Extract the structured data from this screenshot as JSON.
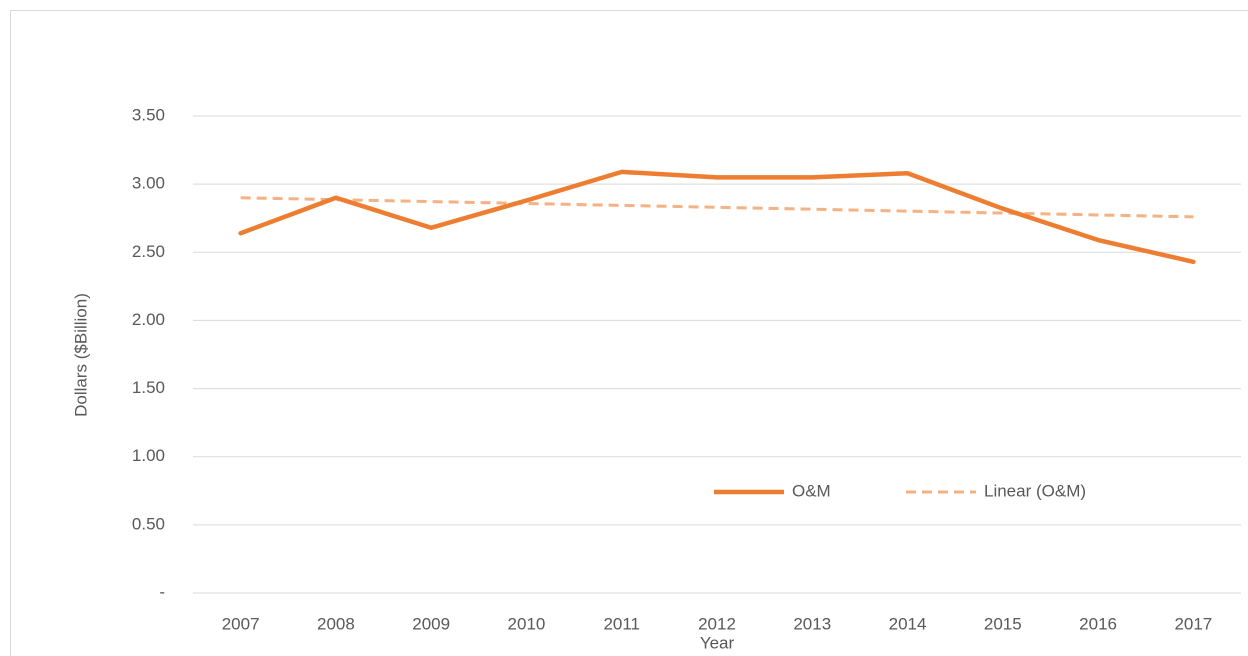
{
  "chart_data": {
    "type": "line",
    "y_label": "Dollars ($Billion)",
    "x_label": "Year",
    "categories": [
      "2007",
      "2008",
      "2009",
      "2010",
      "2011",
      "2012",
      "2013",
      "2014",
      "2015",
      "2016",
      "2017"
    ],
    "series": [
      {
        "name": "O&M",
        "color": "#ed7d31",
        "dashed": false,
        "values": [
          2.64,
          2.9,
          2.68,
          2.88,
          3.09,
          3.05,
          3.05,
          3.08,
          2.82,
          2.59,
          2.43
        ]
      },
      {
        "name": "Linear (O&M)",
        "color": "#f4b183",
        "dashed": true,
        "values": [
          2.9,
          2.886,
          2.872,
          2.858,
          2.844,
          2.83,
          2.816,
          2.802,
          2.788,
          2.774,
          2.76
        ]
      }
    ],
    "ylim": [
      0,
      3.5
    ],
    "yticks": [
      {
        "value": 0,
        "label": "-"
      },
      {
        "value": 0.5,
        "label": "0.50"
      },
      {
        "value": 1,
        "label": "1.00"
      },
      {
        "value": 1.5,
        "label": "1.50"
      },
      {
        "value": 2,
        "label": "2.00"
      },
      {
        "value": 2.5,
        "label": "2.50"
      },
      {
        "value": 3,
        "label": "3.00"
      },
      {
        "value": 3.5,
        "label": "3.50"
      }
    ],
    "grid": true
  }
}
